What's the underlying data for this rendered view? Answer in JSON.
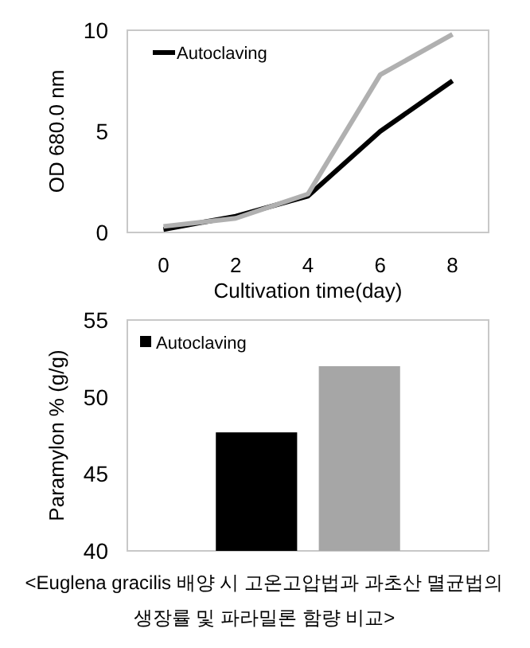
{
  "chart_data": [
    {
      "type": "line",
      "ylabel": "OD 680.0 nm",
      "xlabel": "Cultivation time(day)",
      "x": [
        0,
        2,
        4,
        6,
        8
      ],
      "xlim": [
        -1,
        9
      ],
      "xticks": [
        0,
        2,
        4,
        6,
        8
      ],
      "ylim": [
        0,
        10
      ],
      "yticks": [
        0,
        5,
        10
      ],
      "legend": "top left",
      "grid": false,
      "series": [
        {
          "name": "Autoclaving",
          "color": "#000000",
          "values": [
            0.15,
            0.8,
            1.8,
            5.0,
            7.5
          ]
        },
        {
          "color": "#b0b0b0",
          "values": [
            0.3,
            0.7,
            1.9,
            7.8,
            9.8
          ]
        }
      ]
    },
    {
      "type": "bar",
      "ylabel": "Paramylon % (g/g)",
      "categories": [
        null
      ],
      "ylim": [
        40,
        55
      ],
      "yticks": [
        40,
        45,
        50,
        55
      ],
      "legend": "top left",
      "grid": false,
      "series": [
        {
          "name": "Autoclaving",
          "color": "#000000",
          "values": [
            47.7
          ]
        },
        {
          "color": "#a6a6a6",
          "values": [
            52.0
          ]
        }
      ],
      "annotations": [
        "<Euglena gracilis 배양 시 고온고압법과 과초산 멸균법의 생장률 및 파라밀론 함량 비교>"
      ]
    }
  ]
}
